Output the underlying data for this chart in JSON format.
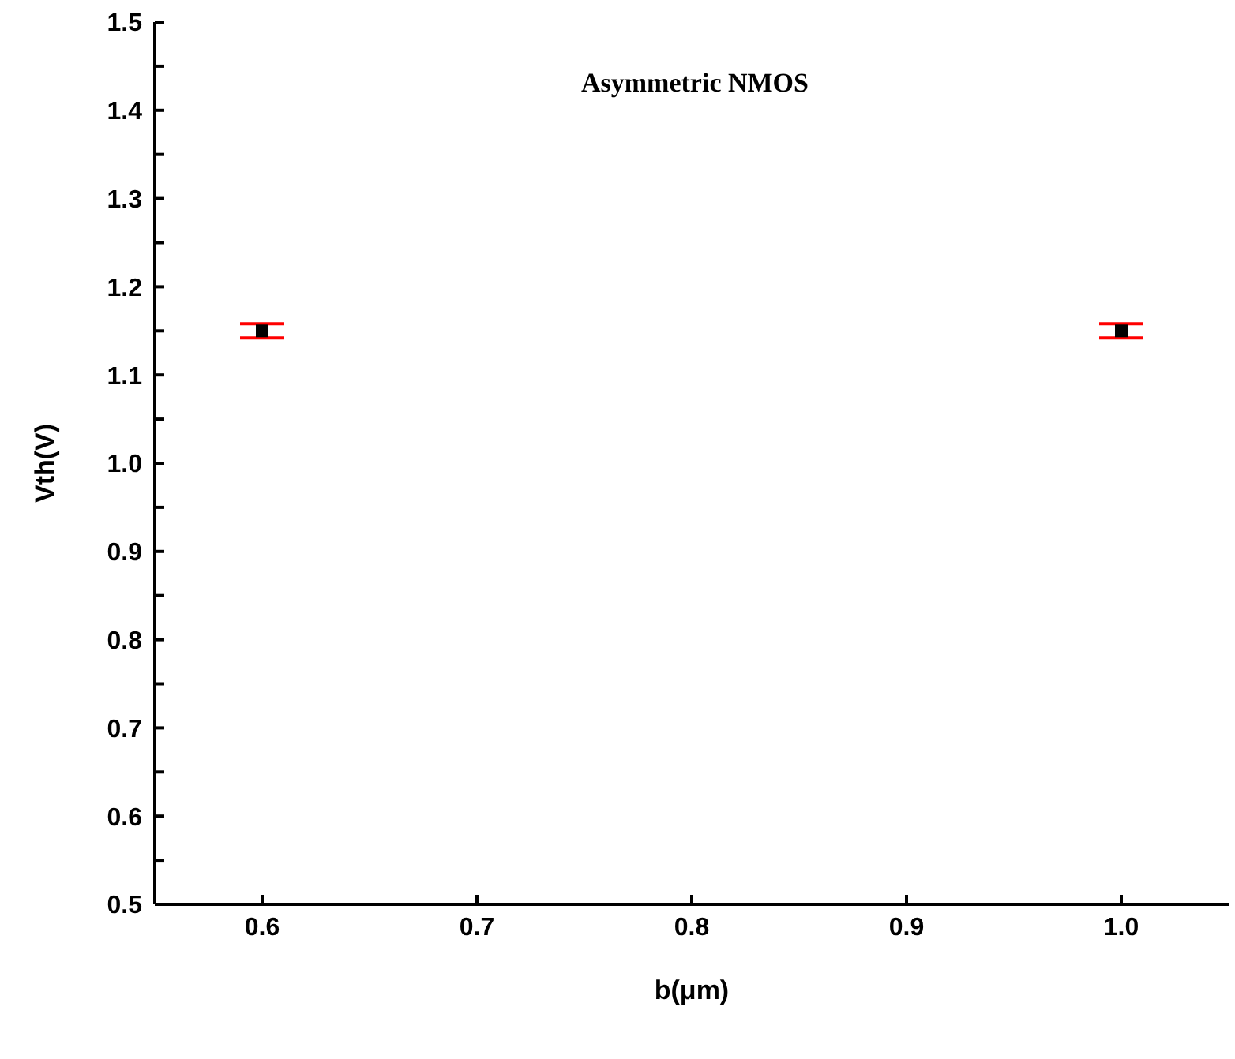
{
  "chart_data": {
    "type": "scatter",
    "title": "Asymmetric NMOS",
    "xlabel": "b(μm)",
    "ylabel": "Vth(V)",
    "x": [
      0.6,
      1.0
    ],
    "series": [
      {
        "color": "#000000",
        "values": [
          1.15,
          1.15
        ],
        "errors": [
          0.008,
          0.008
        ]
      }
    ],
    "xlim": [
      0.55,
      1.05
    ],
    "xticks": [
      0.6,
      0.7,
      0.8,
      0.9,
      {
        "value": 1,
        "label": "1.0"
      }
    ],
    "ylim": [
      0.5,
      1.5
    ],
    "yticks": [
      0.5,
      {
        "value": 0.55,
        "label": null
      },
      0.6,
      {
        "value": 0.65,
        "label": null
      },
      0.7,
      {
        "value": 0.75,
        "label": null
      },
      0.8,
      {
        "value": 0.85,
        "label": null
      },
      0.9,
      {
        "value": 0.95,
        "label": null
      },
      {
        "value": 1,
        "label": "1.0"
      },
      {
        "value": 1.05,
        "label": null
      },
      1.1,
      {
        "value": 1.15,
        "label": null
      },
      1.2,
      {
        "value": 1.25,
        "label": null
      },
      1.3,
      {
        "value": 1.35,
        "label": null
      },
      1.4,
      {
        "value": 1.45,
        "label": null
      },
      1.5
    ],
    "grid": false,
    "legend": false,
    "marker": "square"
  }
}
